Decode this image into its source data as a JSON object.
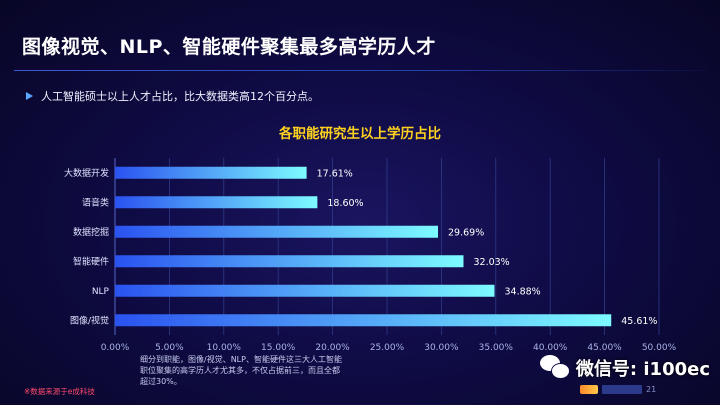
{
  "header": {
    "title": "图像视觉、NLP、智能硬件聚集最多高学历人才",
    "bullet": "人工智能硕士以上人才占比，比大数据类高12个百分点。"
  },
  "chart_data": {
    "type": "bar",
    "orientation": "horizontal",
    "title": "各职能研究生以上学历占比",
    "categories": [
      "大数据开发",
      "语音类",
      "数据挖掘",
      "智能硬件",
      "NLP",
      "图像/视觉"
    ],
    "values": [
      17.61,
      18.6,
      29.69,
      32.03,
      34.88,
      45.61
    ],
    "value_labels": [
      "17.61%",
      "18.60%",
      "29.69%",
      "32.03%",
      "34.88%",
      "45.61%"
    ],
    "x_ticks": [
      "0.00%",
      "5.00%",
      "10.00%",
      "15.00%",
      "20.00%",
      "25.00%",
      "30.00%",
      "35.00%",
      "40.00%",
      "45.00%",
      "50.00%"
    ],
    "xlim": [
      0,
      50
    ],
    "grid": "vertical",
    "colors": {
      "bar_start": "#2a52f0",
      "bar_end": "#7dfbff"
    }
  },
  "note": "细分到职能，图像/视觉、NLP、智能硬件这三大人工智能职位聚集的高学历人才尤其多，不仅占据前三，而且全都超过30%。",
  "footer": {
    "source": "※数据来源于e成科技",
    "page_number": "21",
    "watermark": "微信号: i100ec"
  }
}
